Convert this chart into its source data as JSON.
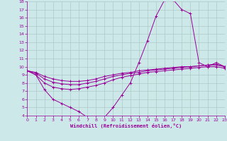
{
  "xlabel": "Windchill (Refroidissement éolien,°C)",
  "background_color": "#cce8e8",
  "line_color": "#990099",
  "grid_color": "#b0c8c8",
  "xlim": [
    0,
    23
  ],
  "ylim": [
    4,
    18
  ],
  "yticks": [
    4,
    5,
    6,
    7,
    8,
    9,
    10,
    11,
    12,
    13,
    14,
    15,
    16,
    17,
    18
  ],
  "xticks": [
    0,
    1,
    2,
    3,
    4,
    5,
    6,
    7,
    8,
    9,
    10,
    11,
    12,
    13,
    14,
    15,
    16,
    17,
    18,
    19,
    20,
    21,
    22,
    23
  ],
  "series": [
    {
      "x": [
        0,
        1,
        2,
        3,
        4,
        5,
        6,
        7,
        8,
        9,
        10,
        11,
        12,
        13,
        14,
        15,
        16,
        17,
        18,
        19,
        20,
        21,
        22,
        23
      ],
      "y": [
        9.5,
        9.0,
        7.2,
        6.0,
        5.5,
        5.0,
        4.5,
        3.8,
        3.7,
        3.8,
        5.0,
        6.5,
        8.0,
        10.5,
        13.2,
        16.2,
        18.2,
        18.2,
        17.0,
        16.5,
        10.5,
        10.0,
        10.5,
        10.0
      ]
    },
    {
      "x": [
        0,
        1,
        2,
        3,
        4,
        5,
        6,
        7,
        8,
        9,
        10,
        11,
        12,
        13,
        14,
        15,
        16,
        17,
        18,
        19,
        20,
        21,
        22,
        23
      ],
      "y": [
        9.5,
        9.0,
        8.0,
        7.5,
        7.3,
        7.2,
        7.3,
        7.5,
        7.7,
        8.0,
        8.4,
        8.7,
        8.9,
        9.1,
        9.3,
        9.4,
        9.5,
        9.6,
        9.7,
        9.8,
        9.9,
        10.0,
        10.0,
        9.8
      ]
    },
    {
      "x": [
        0,
        1,
        2,
        3,
        4,
        5,
        6,
        7,
        8,
        9,
        10,
        11,
        12,
        13,
        14,
        15,
        16,
        17,
        18,
        19,
        20,
        21,
        22,
        23
      ],
      "y": [
        9.5,
        9.2,
        8.5,
        8.1,
        7.9,
        7.8,
        7.8,
        8.0,
        8.2,
        8.5,
        8.8,
        9.0,
        9.2,
        9.3,
        9.5,
        9.6,
        9.7,
        9.8,
        9.9,
        10.0,
        10.1,
        10.2,
        10.2,
        10.0
      ]
    },
    {
      "x": [
        0,
        1,
        2,
        3,
        4,
        5,
        6,
        7,
        8,
        9,
        10,
        11,
        12,
        13,
        14,
        15,
        16,
        17,
        18,
        19,
        20,
        21,
        22,
        23
      ],
      "y": [
        9.5,
        9.3,
        8.8,
        8.5,
        8.3,
        8.2,
        8.2,
        8.3,
        8.5,
        8.8,
        9.0,
        9.2,
        9.3,
        9.5,
        9.6,
        9.7,
        9.8,
        9.9,
        10.0,
        10.0,
        10.1,
        10.2,
        10.3,
        10.0
      ]
    }
  ]
}
